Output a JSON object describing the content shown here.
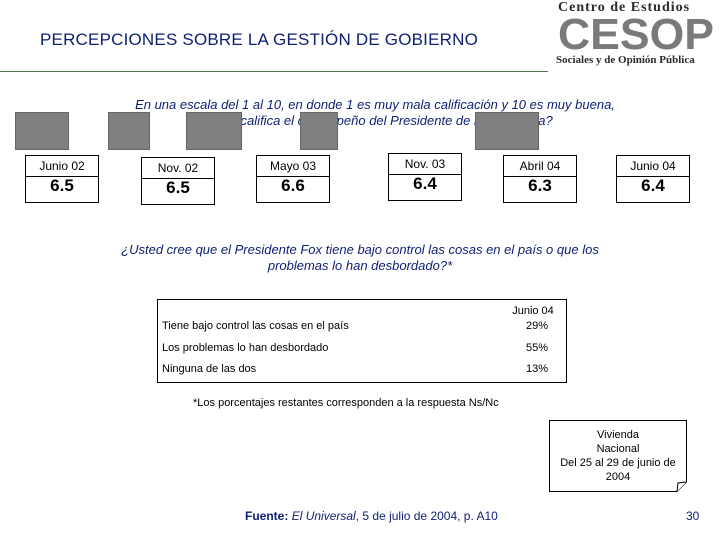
{
  "header": {
    "title": "PERCEPCIONES SOBRE LA GESTIÓN DE GOBIERNO",
    "logo": {
      "top": "Centro de Estudios",
      "mark": "CESOP",
      "bottom": "Sociales y de Opinión Pública"
    }
  },
  "question1": {
    "line1": "En una escala del 1 al 10, en donde 1 es muy mala calificación y 10 es muy buena,",
    "line2": "¿cómo califica el desempeño del Presidente de la República?"
  },
  "grades": [
    {
      "label": "Junio 02",
      "value": "6.5"
    },
    {
      "label": "Nov. 02",
      "value": "6.5"
    },
    {
      "label": "Mayo 03",
      "value": "6.6"
    },
    {
      "label": "Nov. 03",
      "value": "6.4"
    },
    {
      "label": "Abril 04",
      "value": "6.3"
    },
    {
      "label": "Junio 04",
      "value": "6.4"
    }
  ],
  "question2": {
    "line1": "¿Usted cree que el Presidente Fox tiene bajo control las cosas en el país o que los",
    "line2": "problemas lo han desbordado?*"
  },
  "table": {
    "column_header_line1": "Junio 04",
    "rows": [
      {
        "label": "Tiene bajo control las cosas en el país",
        "value": "29%"
      },
      {
        "label": "Los problemas lo han desbordado",
        "value": "55%"
      },
      {
        "label": "Ninguna de las dos",
        "value": "13%"
      }
    ]
  },
  "footnote": "*Los porcentajes restantes corresponden a la respuesta Ns/Nc",
  "survey_note": {
    "line1": "Vivienda",
    "line2": "Nacional",
    "line3": "Del 25 al 29 de junio de",
    "line4": "2004"
  },
  "source": {
    "label": "Fuente:",
    "publication": "El Universal",
    "rest": ", 5 de julio de 2004, p. A10"
  },
  "page_number": "30",
  "colors": {
    "title": "#0d1f73",
    "mask": "#808080",
    "logo": "#2b2b2b"
  }
}
